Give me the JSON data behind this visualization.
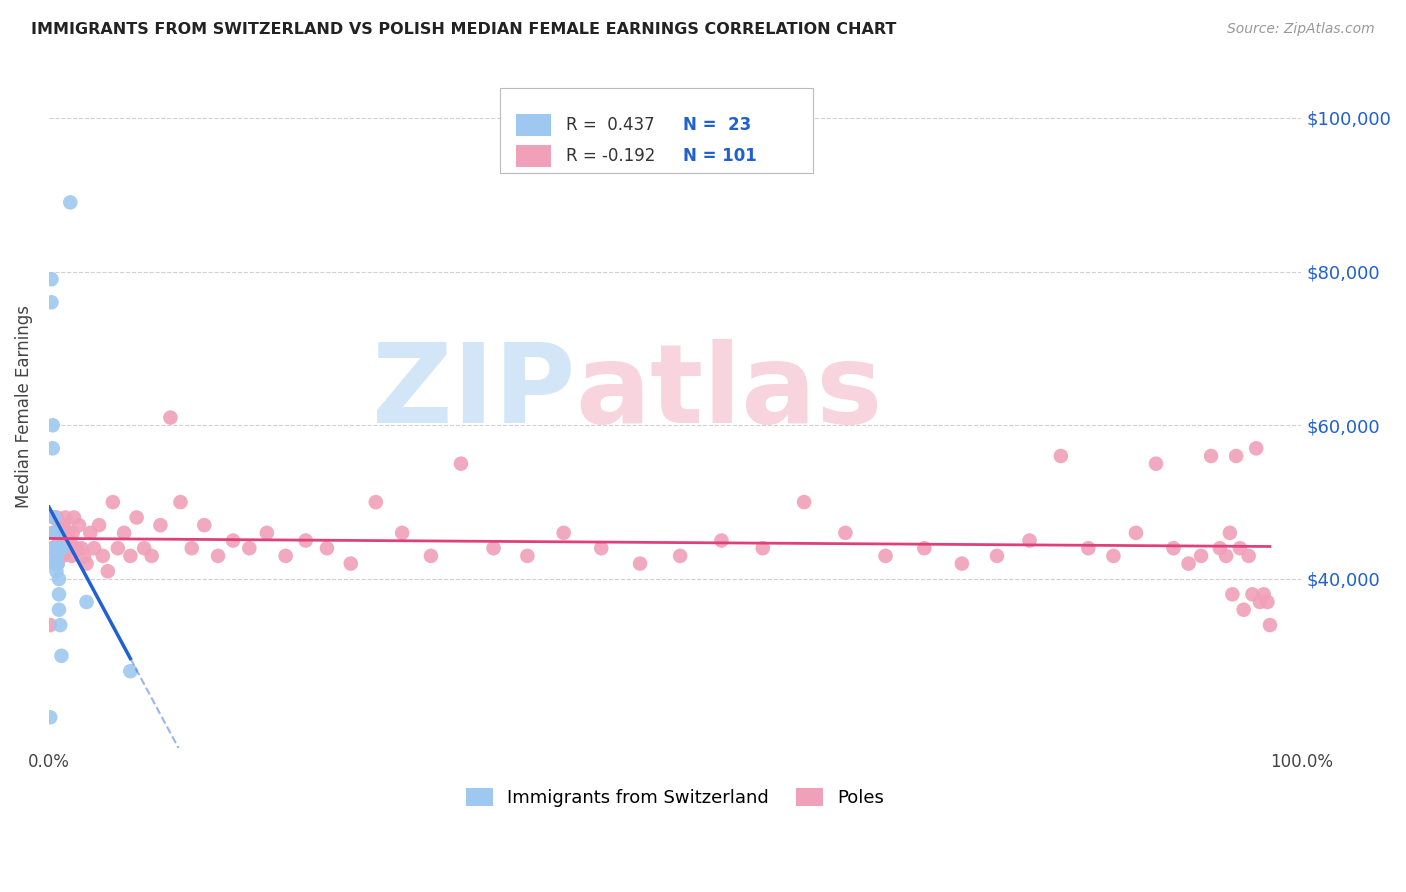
{
  "title": "IMMIGRANTS FROM SWITZERLAND VS POLISH MEDIAN FEMALE EARNINGS CORRELATION CHART",
  "source": "Source: ZipAtlas.com",
  "ylabel": "Median Female Earnings",
  "xlim": [
    0.0,
    1.0
  ],
  "ylim": [
    18000,
    107000
  ],
  "yticks": [
    40000,
    60000,
    80000,
    100000
  ],
  "ytick_labels": [
    "$40,000",
    "$60,000",
    "$80,000",
    "$100,000"
  ],
  "swiss_R": 0.437,
  "swiss_N": 23,
  "poles_R": -0.192,
  "poles_N": 101,
  "swiss_color": "#9ec8f0",
  "poles_color": "#f0a0b8",
  "swiss_line_color": "#2060d0",
  "poles_line_color": "#e0407a",
  "background_color": "#ffffff",
  "grid_color": "#d0d0d0",
  "swiss_x": [
    0.001,
    0.002,
    0.002,
    0.003,
    0.003,
    0.004,
    0.004,
    0.005,
    0.005,
    0.006,
    0.006,
    0.007,
    0.007,
    0.007,
    0.008,
    0.008,
    0.008,
    0.009,
    0.01,
    0.011,
    0.017,
    0.03,
    0.065
  ],
  "swiss_y": [
    22000,
    76000,
    79000,
    57000,
    60000,
    46000,
    48000,
    44000,
    42000,
    43000,
    41000,
    42000,
    44000,
    46000,
    40000,
    38000,
    36000,
    34000,
    30000,
    44000,
    89000,
    37000,
    28000
  ],
  "poles_x": [
    0.001,
    0.002,
    0.003,
    0.004,
    0.004,
    0.005,
    0.005,
    0.006,
    0.006,
    0.007,
    0.007,
    0.008,
    0.008,
    0.009,
    0.009,
    0.01,
    0.01,
    0.011,
    0.011,
    0.012,
    0.012,
    0.013,
    0.014,
    0.015,
    0.016,
    0.017,
    0.018,
    0.019,
    0.02,
    0.022,
    0.024,
    0.026,
    0.028,
    0.03,
    0.033,
    0.036,
    0.04,
    0.043,
    0.047,
    0.051,
    0.055,
    0.06,
    0.065,
    0.07,
    0.076,
    0.082,
    0.089,
    0.097,
    0.105,
    0.114,
    0.124,
    0.135,
    0.147,
    0.16,
    0.174,
    0.189,
    0.205,
    0.222,
    0.241,
    0.261,
    0.282,
    0.305,
    0.329,
    0.355,
    0.382,
    0.411,
    0.441,
    0.472,
    0.504,
    0.537,
    0.57,
    0.603,
    0.636,
    0.668,
    0.699,
    0.729,
    0.757,
    0.783,
    0.808,
    0.83,
    0.85,
    0.868,
    0.884,
    0.898,
    0.91,
    0.92,
    0.928,
    0.935,
    0.94,
    0.943,
    0.945,
    0.948,
    0.951,
    0.954,
    0.958,
    0.961,
    0.964,
    0.967,
    0.97,
    0.973,
    0.975
  ],
  "poles_y": [
    34000,
    44000,
    46000,
    42000,
    48000,
    46000,
    44000,
    48000,
    43000,
    46000,
    42000,
    45000,
    44000,
    47000,
    43000,
    47000,
    44000,
    46000,
    43000,
    47000,
    44000,
    48000,
    45000,
    46000,
    44000,
    45000,
    43000,
    46000,
    48000,
    44000,
    47000,
    44000,
    43000,
    42000,
    46000,
    44000,
    47000,
    43000,
    41000,
    50000,
    44000,
    46000,
    43000,
    48000,
    44000,
    43000,
    47000,
    61000,
    50000,
    44000,
    47000,
    43000,
    45000,
    44000,
    46000,
    43000,
    45000,
    44000,
    42000,
    50000,
    46000,
    43000,
    55000,
    44000,
    43000,
    46000,
    44000,
    42000,
    43000,
    45000,
    44000,
    50000,
    46000,
    43000,
    44000,
    42000,
    43000,
    45000,
    56000,
    44000,
    43000,
    46000,
    55000,
    44000,
    42000,
    43000,
    56000,
    44000,
    43000,
    46000,
    38000,
    56000,
    44000,
    36000,
    43000,
    38000,
    57000,
    37000,
    38000,
    37000,
    34000
  ]
}
